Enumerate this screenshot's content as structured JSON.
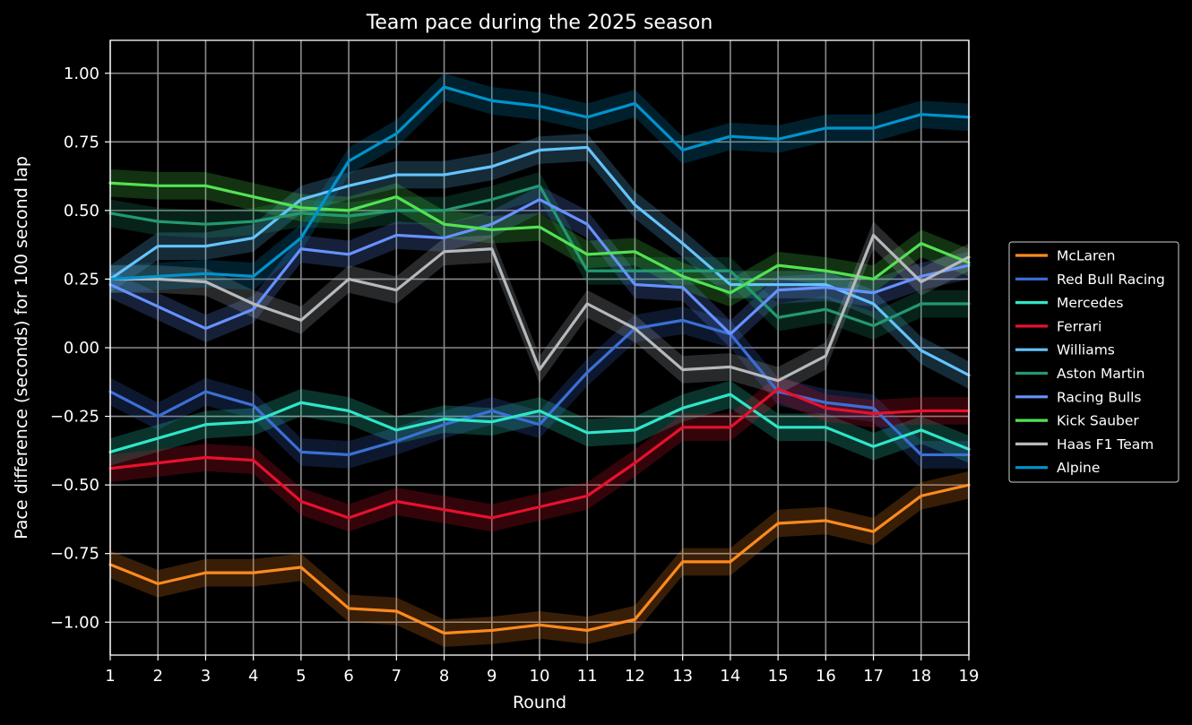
{
  "chart_data": {
    "type": "line",
    "title": "Team pace during the 2025 season",
    "xlabel": "Round",
    "ylabel": "Pace difference (seconds) for 100 second lap",
    "x": [
      1,
      2,
      3,
      4,
      5,
      6,
      7,
      8,
      9,
      10,
      11,
      12,
      13,
      14,
      15,
      16,
      17,
      18,
      19
    ],
    "xlim": [
      1,
      19
    ],
    "ylim": [
      1.12,
      -1.12
    ],
    "y_inverted": true,
    "yticks": [
      -1.0,
      -0.75,
      -0.5,
      -0.25,
      0.0,
      0.25,
      0.5,
      0.75,
      1.0
    ],
    "ytick_labels": [
      "−1.00",
      "−0.75",
      "−0.50",
      "−0.25",
      "0.00",
      "0.25",
      "0.50",
      "0.75",
      "1.00"
    ],
    "grid": true,
    "legend_position": "right",
    "background": "#000000",
    "uncertainty_band": 0.05,
    "series": [
      {
        "name": "McLaren",
        "color": "#ff8a1e",
        "values": [
          -0.79,
          -0.86,
          -0.82,
          -0.82,
          -0.8,
          -0.95,
          -0.96,
          -1.04,
          -1.03,
          -1.01,
          -1.03,
          -0.99,
          -0.78,
          -0.78,
          -0.64,
          -0.63,
          -0.67,
          -0.54,
          -0.5
        ]
      },
      {
        "name": "Red Bull Racing",
        "color": "#3c6fd6",
        "values": [
          -0.16,
          -0.25,
          -0.16,
          -0.21,
          -0.38,
          -0.39,
          -0.34,
          -0.28,
          -0.23,
          -0.28,
          -0.09,
          0.07,
          0.1,
          0.05,
          -0.16,
          -0.2,
          -0.22,
          -0.39,
          -0.39
        ]
      },
      {
        "name": "Mercedes",
        "color": "#2ee6c8",
        "values": [
          -0.38,
          -0.33,
          -0.28,
          -0.27,
          -0.2,
          -0.23,
          -0.3,
          -0.26,
          -0.27,
          -0.23,
          -0.31,
          -0.3,
          -0.22,
          -0.17,
          -0.29,
          -0.29,
          -0.36,
          -0.3,
          -0.37
        ]
      },
      {
        "name": "Ferrari",
        "color": "#e8102e",
        "values": [
          -0.44,
          -0.42,
          -0.4,
          -0.41,
          -0.56,
          -0.62,
          -0.56,
          -0.59,
          -0.62,
          -0.58,
          -0.54,
          -0.42,
          -0.29,
          -0.29,
          -0.15,
          -0.22,
          -0.24,
          -0.23,
          -0.23
        ]
      },
      {
        "name": "Williams",
        "color": "#64c4ff",
        "values": [
          0.25,
          0.37,
          0.37,
          0.4,
          0.54,
          0.59,
          0.63,
          0.63,
          0.66,
          0.72,
          0.73,
          0.52,
          0.38,
          0.23,
          0.23,
          0.23,
          0.16,
          -0.01,
          -0.1
        ]
      },
      {
        "name": "Aston Martin",
        "color": "#229971",
        "values": [
          0.49,
          0.46,
          0.45,
          0.46,
          0.49,
          0.48,
          0.5,
          0.5,
          0.54,
          0.59,
          0.28,
          0.28,
          0.28,
          0.28,
          0.11,
          0.14,
          0.08,
          0.16,
          0.16
        ]
      },
      {
        "name": "Racing Bulls",
        "color": "#6692ff",
        "values": [
          0.23,
          0.15,
          0.07,
          0.14,
          0.36,
          0.34,
          0.41,
          0.4,
          0.45,
          0.54,
          0.45,
          0.23,
          0.22,
          0.05,
          0.21,
          0.22,
          0.2,
          0.26,
          0.3
        ]
      },
      {
        "name": "Kick Sauber",
        "color": "#52e252",
        "values": [
          0.6,
          0.59,
          0.59,
          0.55,
          0.51,
          0.5,
          0.55,
          0.45,
          0.43,
          0.44,
          0.34,
          0.35,
          0.26,
          0.2,
          0.3,
          0.28,
          0.25,
          0.38,
          0.31
        ]
      },
      {
        "name": "Haas F1 Team",
        "color": "#b6babd",
        "values": [
          0.25,
          0.25,
          0.24,
          0.16,
          0.1,
          0.25,
          0.21,
          0.35,
          0.36,
          -0.08,
          0.16,
          0.07,
          -0.08,
          -0.07,
          -0.12,
          -0.03,
          0.41,
          0.24,
          0.33
        ]
      },
      {
        "name": "Alpine",
        "color": "#0093cc",
        "values": [
          0.25,
          0.26,
          0.27,
          0.26,
          0.4,
          0.68,
          0.78,
          0.95,
          0.9,
          0.88,
          0.84,
          0.89,
          0.72,
          0.77,
          0.76,
          0.8,
          0.8,
          0.85,
          0.84
        ]
      }
    ]
  }
}
